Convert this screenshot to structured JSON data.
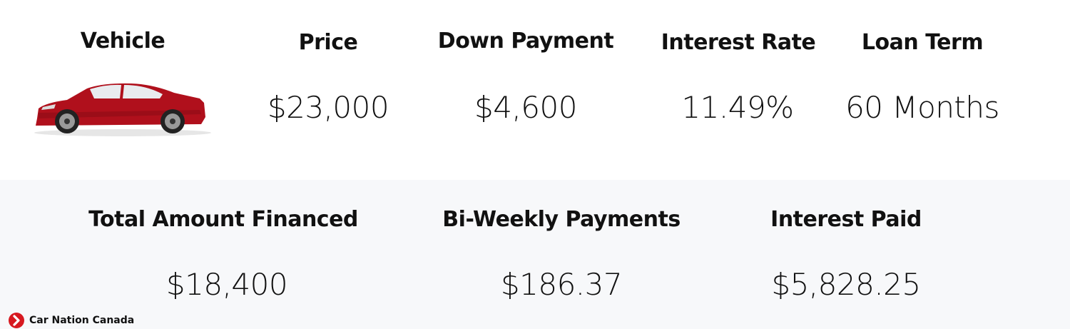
{
  "top": {
    "columns": [
      {
        "header": "Vehicle",
        "value": ""
      },
      {
        "header": "Price",
        "value": "$23,000"
      },
      {
        "header": "Down Payment",
        "value": "$4,600"
      },
      {
        "header": "Interest Rate",
        "value": "11.49%"
      },
      {
        "header": "Loan Term",
        "value": "60 Months"
      }
    ],
    "vehicle_image": "red-sedan-side-view"
  },
  "bottom": {
    "columns": [
      {
        "header": "Total Amount Financed",
        "value": "$18,400"
      },
      {
        "header": "Bi-Weekly Payments",
        "value": "$186.37"
      },
      {
        "header": "Interest Paid",
        "value": "$5,828.25"
      }
    ]
  },
  "brand": {
    "name": "Car Nation Canada",
    "icon": "chevron-right-circle-icon",
    "color": "#d71920"
  },
  "colors": {
    "car_red": "#b0101c",
    "bottom_bg": "#f7f8fa"
  }
}
